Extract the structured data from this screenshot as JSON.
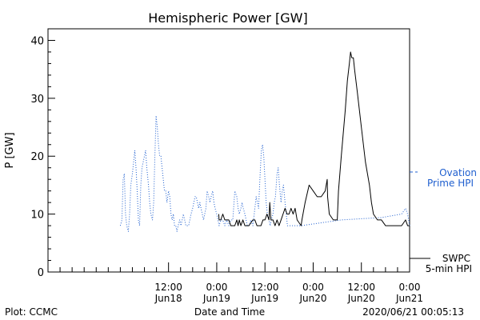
{
  "chart_data": {
    "type": "line",
    "title": "Hemispheric Power [GW]",
    "xlabel": "Date and Time",
    "ylabel": "P [GW]",
    "ylim": [
      0,
      42
    ],
    "yticks": [
      0,
      10,
      20,
      30,
      40
    ],
    "xlim_hours": [
      -18,
      72
    ],
    "x_tick_labels": [
      {
        "hour": 12,
        "time": "12:00",
        "date": "Jun18"
      },
      {
        "hour": 24,
        "time": "0:00",
        "date": "Jun19"
      },
      {
        "hour": 36,
        "time": "12:00",
        "date": "Jun19"
      },
      {
        "hour": 48,
        "time": "0:00",
        "date": "Jun20"
      },
      {
        "hour": 60,
        "time": "12:00",
        "date": "Jun20"
      },
      {
        "hour": 72,
        "time": "0:00",
        "date": "Jun21"
      }
    ],
    "grid": false,
    "legend_placement": "right",
    "series": [
      {
        "name": "Ovation Prime HPI",
        "legend_lines": [
          "Ovation",
          "Prime HPI"
        ],
        "style": "dotted",
        "color": "#1f5fcf",
        "points": [
          [
            0.0,
            8
          ],
          [
            0.4,
            9
          ],
          [
            0.7,
            16
          ],
          [
            1.0,
            17
          ],
          [
            1.3,
            10
          ],
          [
            1.6,
            8
          ],
          [
            2.0,
            7
          ],
          [
            2.3,
            10
          ],
          [
            2.6,
            15
          ],
          [
            3.0,
            17
          ],
          [
            3.3,
            19
          ],
          [
            3.6,
            21
          ],
          [
            3.9,
            18
          ],
          [
            4.2,
            14
          ],
          [
            4.5,
            9
          ],
          [
            4.8,
            8
          ],
          [
            5.1,
            15
          ],
          [
            5.4,
            18
          ],
          [
            5.7,
            19
          ],
          [
            6.0,
            20
          ],
          [
            6.3,
            21
          ],
          [
            6.6,
            18
          ],
          [
            7.0,
            15
          ],
          [
            7.3,
            12
          ],
          [
            7.6,
            10
          ],
          [
            8.0,
            9
          ],
          [
            8.3,
            12
          ],
          [
            8.6,
            20
          ],
          [
            8.9,
            27
          ],
          [
            9.2,
            25
          ],
          [
            9.5,
            22
          ],
          [
            9.8,
            20
          ],
          [
            10.1,
            20
          ],
          [
            10.4,
            18
          ],
          [
            10.7,
            16
          ],
          [
            11.0,
            14
          ],
          [
            11.3,
            14
          ],
          [
            11.6,
            12
          ],
          [
            12.0,
            14
          ],
          [
            12.3,
            13
          ],
          [
            12.6,
            10
          ],
          [
            12.9,
            9
          ],
          [
            13.2,
            10
          ],
          [
            13.5,
            8
          ],
          [
            13.8,
            8
          ],
          [
            14.1,
            7
          ],
          [
            14.4,
            8
          ],
          [
            14.8,
            9
          ],
          [
            15.1,
            8
          ],
          [
            15.4,
            9
          ],
          [
            15.7,
            10
          ],
          [
            16.0,
            9
          ],
          [
            16.3,
            8
          ],
          [
            16.6,
            8
          ],
          [
            17.0,
            8
          ],
          [
            17.3,
            9
          ],
          [
            17.6,
            10
          ],
          [
            18.0,
            11
          ],
          [
            18.3,
            12
          ],
          [
            18.6,
            13
          ],
          [
            18.9,
            13
          ],
          [
            19.2,
            12
          ],
          [
            19.5,
            11
          ],
          [
            19.8,
            12
          ],
          [
            20.1,
            11
          ],
          [
            20.4,
            10
          ],
          [
            20.7,
            9
          ],
          [
            21.0,
            10
          ],
          [
            21.3,
            11
          ],
          [
            21.6,
            14
          ],
          [
            22.0,
            13
          ],
          [
            22.3,
            12
          ],
          [
            22.6,
            13
          ],
          [
            23.0,
            14
          ],
          [
            23.3,
            12
          ],
          [
            23.6,
            11
          ],
          [
            24.0,
            10
          ],
          [
            24.3,
            9
          ],
          [
            24.6,
            8
          ],
          [
            25.0,
            9
          ],
          [
            25.5,
            9
          ],
          [
            26.0,
            8
          ],
          [
            26.5,
            9
          ],
          [
            27.0,
            8
          ],
          [
            27.5,
            9
          ],
          [
            28.0,
            9
          ],
          [
            28.5,
            14
          ],
          [
            29.0,
            13
          ],
          [
            29.3,
            11
          ],
          [
            29.6,
            10
          ],
          [
            30.0,
            11
          ],
          [
            30.3,
            12
          ],
          [
            30.6,
            11
          ],
          [
            31.0,
            10
          ],
          [
            31.3,
            9
          ],
          [
            31.6,
            8
          ],
          [
            32.0,
            8
          ],
          [
            32.5,
            9
          ],
          [
            33.0,
            8
          ],
          [
            33.5,
            11
          ],
          [
            33.8,
            13
          ],
          [
            34.1,
            12
          ],
          [
            34.4,
            11
          ],
          [
            34.8,
            17
          ],
          [
            35.1,
            21
          ],
          [
            35.4,
            22
          ],
          [
            35.7,
            20
          ],
          [
            36.0,
            16
          ],
          [
            36.3,
            12
          ],
          [
            36.6,
            10
          ],
          [
            37.0,
            9
          ],
          [
            37.3,
            8
          ],
          [
            37.6,
            9
          ],
          [
            38.0,
            10
          ],
          [
            38.3,
            12
          ],
          [
            38.6,
            13
          ],
          [
            39.0,
            17
          ],
          [
            39.3,
            18
          ],
          [
            39.6,
            15
          ],
          [
            40.0,
            12
          ],
          [
            40.3,
            14
          ],
          [
            40.6,
            15
          ],
          [
            41.0,
            12
          ],
          [
            41.3,
            10
          ],
          [
            41.6,
            8
          ],
          [
            42.0,
            8
          ],
          [
            43.0,
            8
          ],
          [
            45.0,
            8
          ],
          [
            50.0,
            8.5
          ],
          [
            55.0,
            9
          ],
          [
            60.0,
            9.2
          ],
          [
            65.0,
            9.4
          ],
          [
            70.0,
            10
          ],
          [
            71.0,
            11
          ],
          [
            71.5,
            10
          ],
          [
            72.0,
            8
          ]
        ]
      },
      {
        "name": "SWPC 5-min HPI",
        "legend_lines": [
          "SWPC",
          "5-min HPI"
        ],
        "style": "solid",
        "color": "#000000",
        "points": [
          [
            24.5,
            10
          ],
          [
            24.6,
            9
          ],
          [
            25.0,
            9
          ],
          [
            25.5,
            10
          ],
          [
            26.0,
            9
          ],
          [
            26.5,
            9
          ],
          [
            27.0,
            9
          ],
          [
            27.5,
            8
          ],
          [
            28.0,
            8
          ],
          [
            28.5,
            8
          ],
          [
            29.0,
            9
          ],
          [
            29.3,
            8
          ],
          [
            29.6,
            9
          ],
          [
            30.0,
            8
          ],
          [
            30.5,
            9
          ],
          [
            31.0,
            8
          ],
          [
            32.0,
            8
          ],
          [
            33.0,
            9
          ],
          [
            33.5,
            9
          ],
          [
            34.0,
            8
          ],
          [
            35.0,
            8
          ],
          [
            35.5,
            9
          ],
          [
            36.0,
            9
          ],
          [
            36.5,
            10
          ],
          [
            37.0,
            9
          ],
          [
            37.2,
            12
          ],
          [
            37.5,
            9
          ],
          [
            38.0,
            9
          ],
          [
            38.5,
            8
          ],
          [
            39.0,
            9
          ],
          [
            39.5,
            8
          ],
          [
            40.0,
            9
          ],
          [
            40.5,
            10
          ],
          [
            41.0,
            11
          ],
          [
            41.5,
            10
          ],
          [
            42.0,
            10
          ],
          [
            42.5,
            11
          ],
          [
            43.0,
            10
          ],
          [
            43.5,
            11
          ],
          [
            44.0,
            9
          ],
          [
            45.0,
            8
          ],
          [
            45.2,
            9
          ],
          [
            46.0,
            12
          ],
          [
            47.0,
            15
          ],
          [
            48.0,
            14
          ],
          [
            49.0,
            13
          ],
          [
            50.0,
            13
          ],
          [
            51.0,
            14
          ],
          [
            51.5,
            16
          ],
          [
            51.6,
            13
          ],
          [
            52.0,
            10
          ],
          [
            53.0,
            9
          ],
          [
            54.0,
            9
          ],
          [
            54.3,
            14
          ],
          [
            55.0,
            20
          ],
          [
            56.0,
            28
          ],
          [
            56.5,
            33
          ],
          [
            57.0,
            36
          ],
          [
            57.3,
            38
          ],
          [
            57.6,
            37
          ],
          [
            58.0,
            37
          ],
          [
            58.3,
            35
          ],
          [
            59.0,
            31
          ],
          [
            60.0,
            25
          ],
          [
            61.0,
            19
          ],
          [
            62.0,
            15
          ],
          [
            62.5,
            12
          ],
          [
            63.0,
            10
          ],
          [
            64.0,
            9
          ],
          [
            65.0,
            9
          ],
          [
            66.0,
            8
          ],
          [
            68.0,
            8
          ],
          [
            70.0,
            8
          ],
          [
            71.0,
            9
          ],
          [
            71.5,
            8
          ],
          [
            72.0,
            8
          ]
        ]
      }
    ],
    "footer_left": "Plot: CCMC",
    "footer_right": "2020/06/21 00:05:13"
  }
}
